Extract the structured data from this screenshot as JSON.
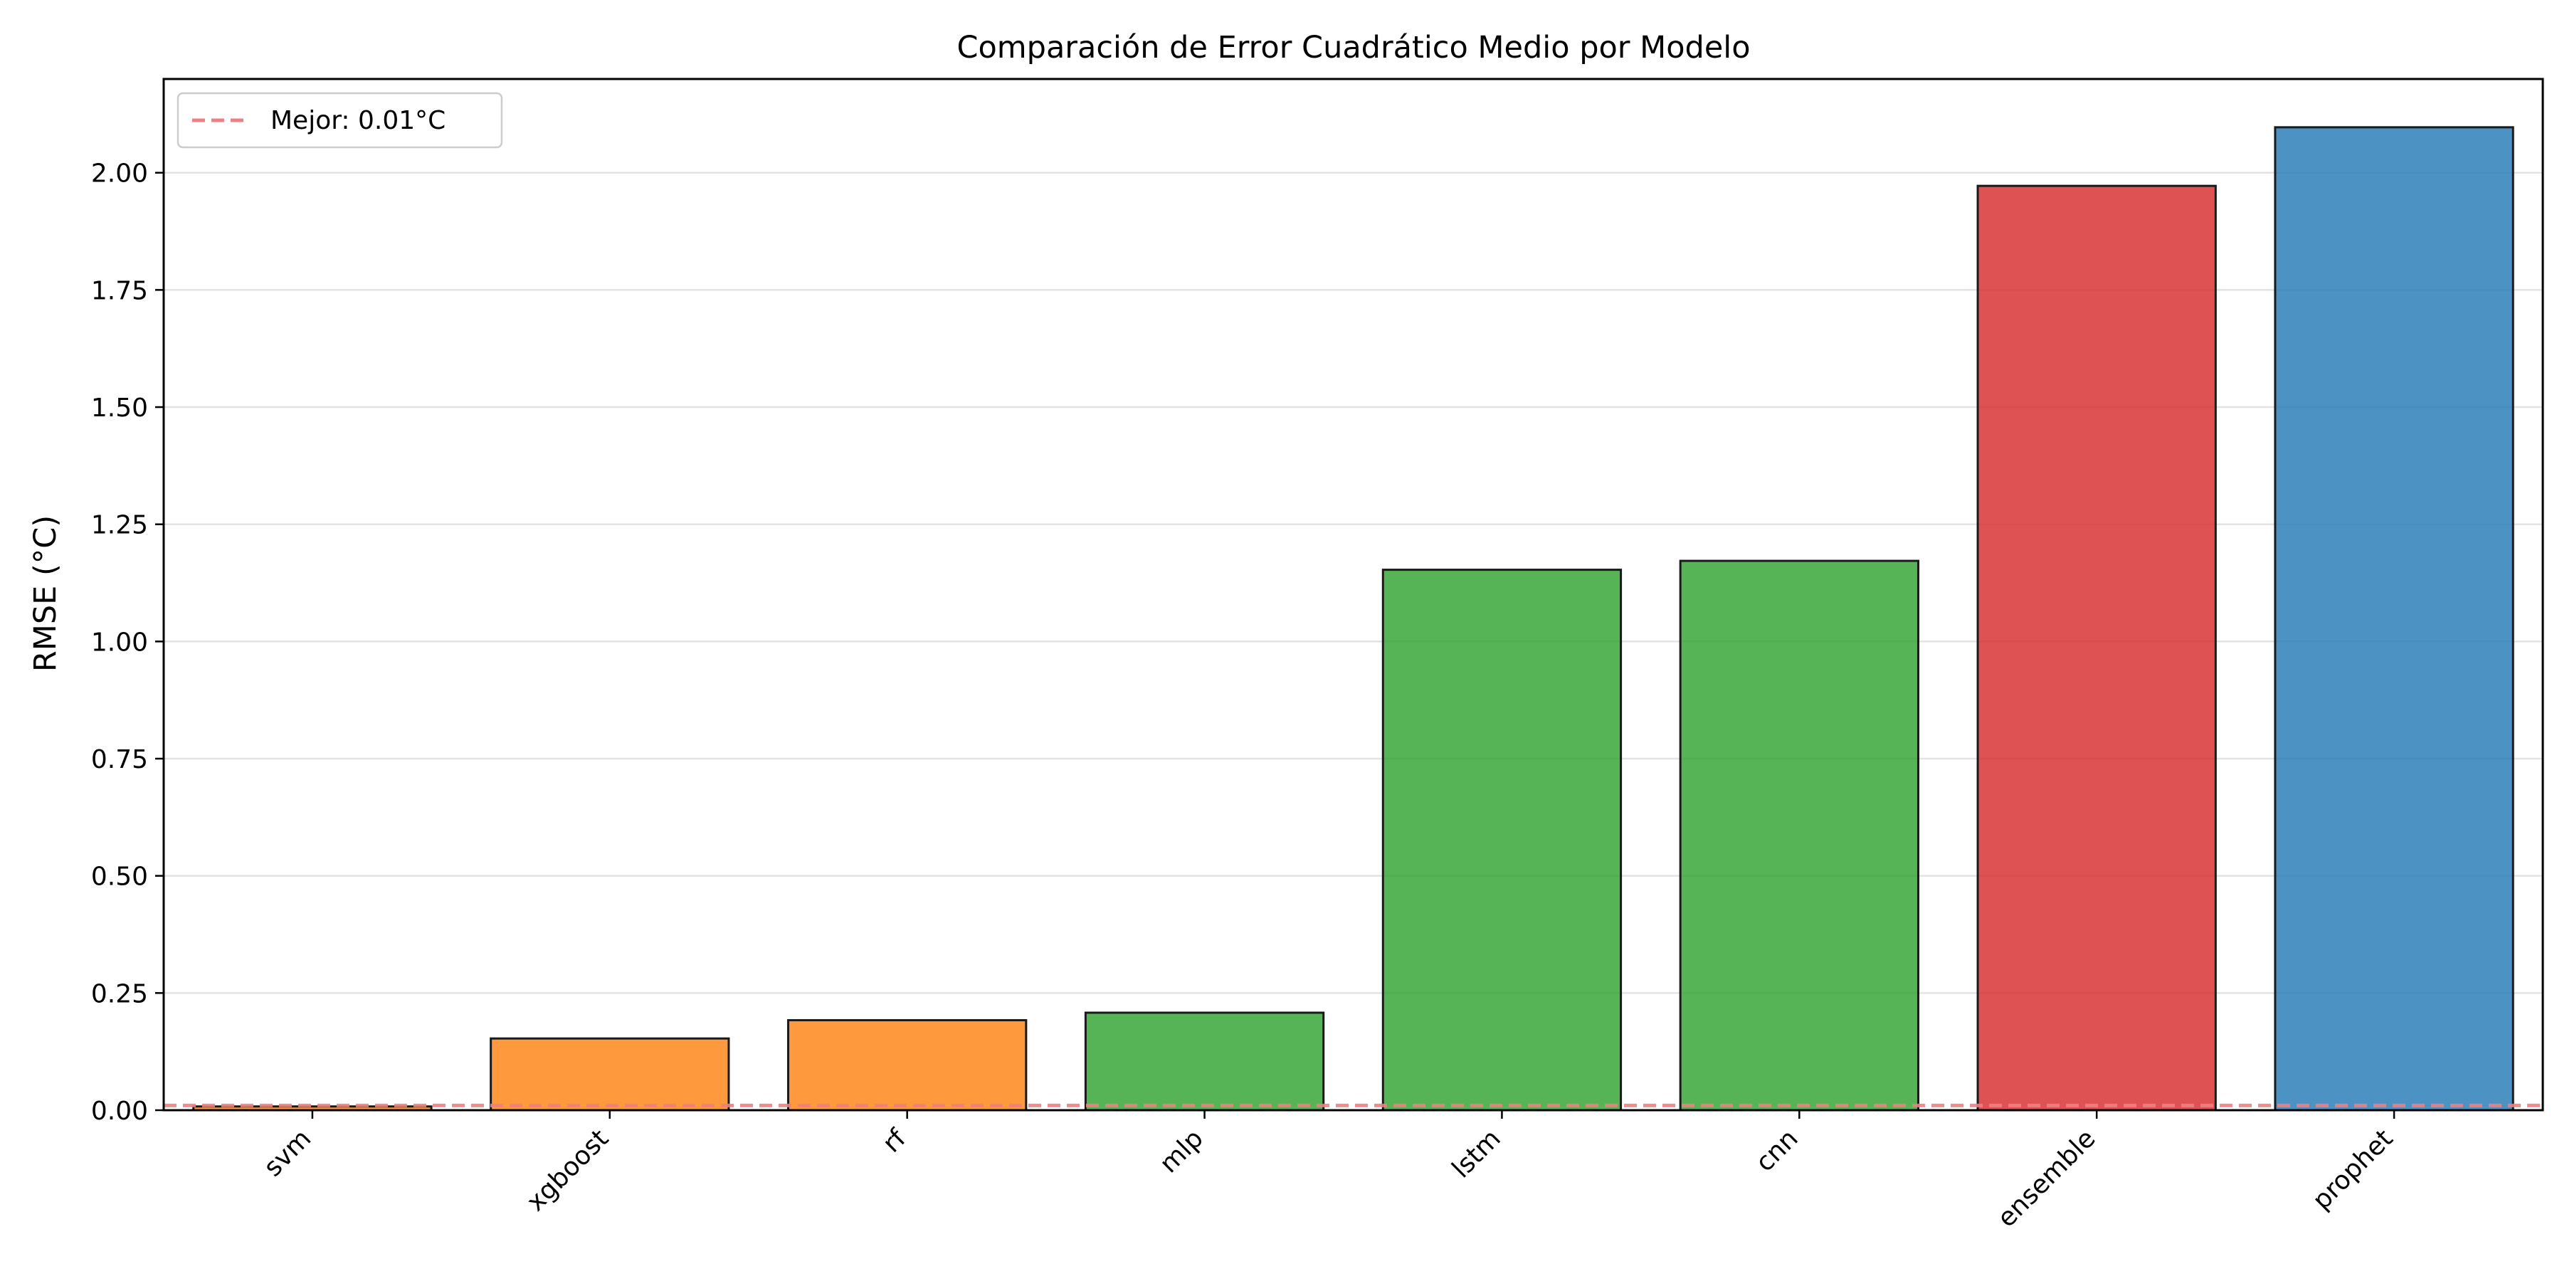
{
  "chart_data": {
    "type": "bar",
    "title": "Comparación de Error Cuadrático Medio por Modelo",
    "xlabel": "",
    "ylabel": "RMSE (°C)",
    "categories": [
      "svm",
      "xgboost",
      "rf",
      "mlp",
      "lstm",
      "cnn",
      "ensemble",
      "prophet"
    ],
    "values": [
      0.008,
      0.153,
      0.192,
      0.208,
      1.153,
      1.172,
      1.972,
      2.097
    ],
    "colors": [
      "#ff7f0e",
      "#ff7f0e",
      "#ff7f0e",
      "#2ca02c",
      "#2ca02c",
      "#2ca02c",
      "#d62728",
      "#1f77b4"
    ],
    "bar_opacity": 0.8,
    "edge_color": "#1a1a1a",
    "ylim": [
      0,
      2.2
    ],
    "yticks": [
      "0.00",
      "0.25",
      "0.50",
      "0.75",
      "1.00",
      "1.25",
      "1.50",
      "1.75",
      "2.00"
    ],
    "grid": "y",
    "reference_line": {
      "value": 0.01,
      "color": "#f08080",
      "style": "dashed"
    },
    "legend": {
      "position": "top-left",
      "entries": [
        "Mejor: 0.01°C"
      ]
    }
  }
}
